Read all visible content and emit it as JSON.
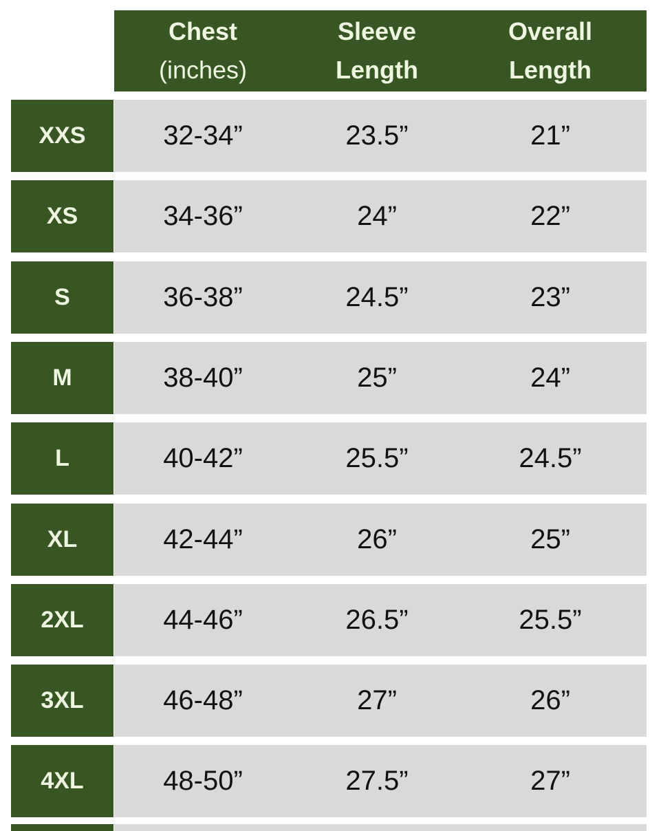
{
  "header": {
    "columns": [
      {
        "line1": "Chest",
        "line2": "(inches)"
      },
      {
        "line1": "Sleeve",
        "line2": "Length"
      },
      {
        "line1": "Overall",
        "line2": "Length"
      }
    ]
  },
  "colors": {
    "header_bg": "#375623",
    "cell_bg": "#d9d9d9",
    "header_text": "#eef5e0"
  },
  "rows": [
    {
      "size": "XXS",
      "chest": "32-34”",
      "sleeve": "23.5”",
      "overall": "21”"
    },
    {
      "size": "XS",
      "chest": "34-36”",
      "sleeve": "24”",
      "overall": "22”"
    },
    {
      "size": "S",
      "chest": "36-38”",
      "sleeve": "24.5”",
      "overall": "23”"
    },
    {
      "size": "M",
      "chest": "38-40”",
      "sleeve": "25”",
      "overall": "24”"
    },
    {
      "size": "L",
      "chest": "40-42”",
      "sleeve": "25.5”",
      "overall": "24.5”"
    },
    {
      "size": "XL",
      "chest": "42-44”",
      "sleeve": "26”",
      "overall": "25”"
    },
    {
      "size": "2XL",
      "chest": "44-46”",
      "sleeve": "26.5”",
      "overall": "25.5”"
    },
    {
      "size": "3XL",
      "chest": "46-48”",
      "sleeve": "27”",
      "overall": "26”"
    },
    {
      "size": "4XL",
      "chest": "48-50”",
      "sleeve": "27.5”",
      "overall": "27”"
    }
  ]
}
